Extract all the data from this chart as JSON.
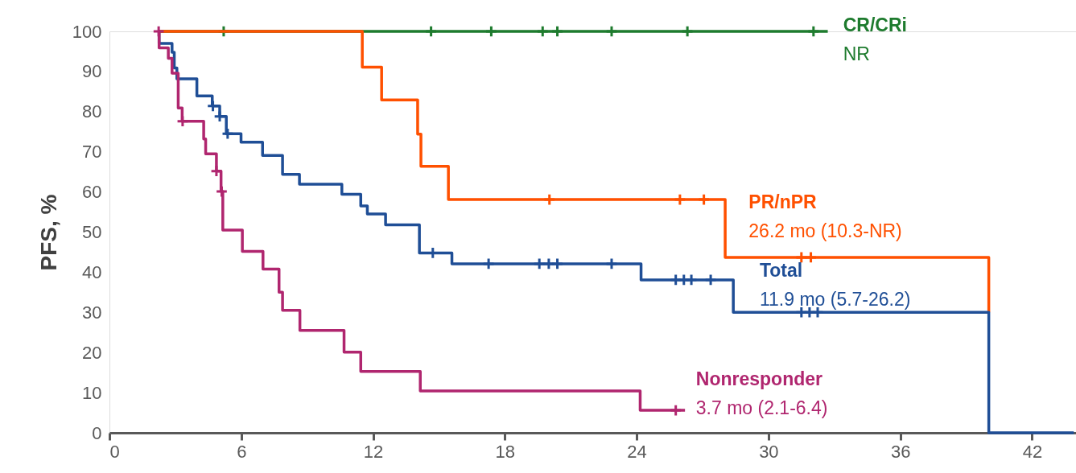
{
  "chart_data": {
    "type": "step",
    "ylabel": "PFS, %",
    "xlim": [
      0,
      44
    ],
    "ylim": [
      0,
      100
    ],
    "xticks": [
      0,
      6,
      12,
      18,
      24,
      30,
      36,
      42
    ],
    "yticks": [
      0,
      10,
      20,
      30,
      40,
      50,
      60,
      70,
      80,
      90,
      100
    ],
    "grid": false,
    "line_style": "solid",
    "series": [
      {
        "name": "CR/CRi",
        "color": "#1e7b2e",
        "x": [
          2.24,
          32.7
        ],
        "values": [
          100,
          100
        ]
      },
      {
        "color": "#1e7b2e",
        "type": "scatter",
        "marker": "cross",
        "x": [
          5.2,
          14.64,
          17.38,
          19.72,
          20.39,
          22.86,
          26.31,
          32.05
        ],
        "values": [
          100,
          100,
          100,
          100,
          100,
          100,
          100,
          100
        ]
      },
      {
        "name": "PR/nPR",
        "color": "#ff5000",
        "x": [
          2.24,
          11.51,
          12.39,
          14.03,
          14.18,
          15.43,
          28.03,
          40.03
        ],
        "values": [
          100,
          91.1,
          82.9,
          74.4,
          66.4,
          58.1,
          43.7,
          30
        ]
      },
      {
        "color": "#ff5000",
        "type": "scatter",
        "marker": "cross",
        "x": [
          20.03,
          25.97,
          27.06,
          31.5,
          31.93
        ],
        "values": [
          58.1,
          58.1,
          58.1,
          43.7,
          43.7
        ]
      },
      {
        "name": "Total",
        "color": "#1f4e96",
        "x": [
          2.24,
          2.26,
          2.85,
          2.95,
          3.07,
          3.98,
          4.68,
          5.02,
          5.32,
          5.99,
          6.97,
          7.88,
          8.65,
          10.58,
          11.44,
          11.74,
          12.57,
          14.11,
          15.59,
          24.2,
          28.4,
          40.03,
          43.9
        ],
        "values": [
          100,
          97,
          94.8,
          90.9,
          88.2,
          83.9,
          81.4,
          78.8,
          74.5,
          72.4,
          69.1,
          64.4,
          61.9,
          59.4,
          56.5,
          54.5,
          51.8,
          44.8,
          42.1,
          38.1,
          30,
          0,
          0
        ]
      },
      {
        "color": "#1f4e96",
        "type": "scatter",
        "marker": "cross",
        "x": [
          4.71,
          5.02,
          5.38,
          14.72,
          17.26,
          19.57,
          20.0,
          20.39,
          22.86,
          25.78,
          26.15,
          26.49,
          27.37,
          31.5,
          31.87,
          32.24
        ],
        "values": [
          81.4,
          78.8,
          74.5,
          44.8,
          42.1,
          42.1,
          42.1,
          42.1,
          42.1,
          38.1,
          38.1,
          38.1,
          38.1,
          30,
          30,
          30
        ]
      },
      {
        "name": "Nonresponder",
        "color": "#b0266f",
        "x": [
          2.24,
          2.26,
          2.68,
          2.85,
          3.13,
          3.31,
          4.29,
          4.38,
          4.87,
          5.08,
          5.16,
          6.05,
          6.99,
          7.72,
          7.88,
          8.67,
          10.68,
          11.44,
          14.15,
          24.16,
          26.2
        ],
        "values": [
          100,
          95.9,
          93.3,
          89.6,
          80.9,
          77.6,
          73.2,
          69.5,
          65.2,
          60.1,
          50.5,
          45.2,
          40.8,
          35.0,
          30.5,
          25.5,
          20.1,
          15.3,
          10.4,
          5.6,
          5.6
        ]
      },
      {
        "color": "#b0266f",
        "type": "scatter",
        "marker": "cross",
        "x": [
          2.24,
          3.33,
          4.87,
          5.11,
          25.78
        ],
        "values": [
          100,
          77.6,
          65.2,
          60.1,
          5.6
        ]
      }
    ],
    "annotations": [
      "NR",
      "26.2 mo (10.3-NR)",
      "11.9 mo (5.7-26.2)",
      "3.7 mo (2.1-6.4)"
    ]
  }
}
